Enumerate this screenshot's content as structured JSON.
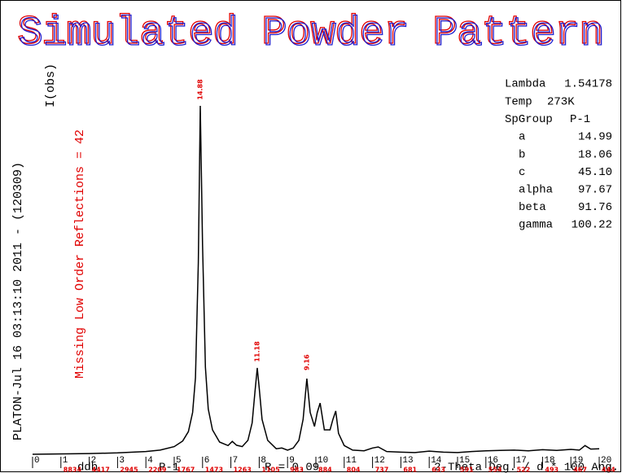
{
  "chart_data": {
    "type": "line",
    "title": "Simulated Powder Pattern",
    "title_colors": [
      "#e00000",
      "#2020d0"
    ],
    "program_line": "PLATON-Jul 16 03:13:10 2011 - (120309)",
    "ylabel": "I(obs)",
    "missing_note": "Missing Low Order Reflections = 42",
    "info": [
      {
        "label": "Lambda",
        "value": "1.54178"
      },
      {
        "label": "Temp",
        "value": "273K"
      },
      {
        "label": "SpGroup",
        "value": "P-1"
      }
    ],
    "cell": [
      {
        "label": "a",
        "value": "14.99"
      },
      {
        "label": "b",
        "value": "18.06"
      },
      {
        "label": "c",
        "value": "45.10"
      },
      {
        "label": "alpha",
        "value": "97.67"
      },
      {
        "label": "beta",
        "value": "91.76"
      },
      {
        "label": "gamma",
        "value": "100.22"
      }
    ],
    "footer": {
      "left": "ddb",
      "group": "P-1",
      "r_factor": "R = 0.09",
      "xlabel": "2-Theta Deg. / d * 100 Ang."
    },
    "xlim": [
      0,
      20
    ],
    "ylim": [
      0,
      100
    ],
    "xticks": [
      0,
      1,
      2,
      3,
      4,
      5,
      6,
      7,
      8,
      9,
      10,
      11,
      12,
      13,
      14,
      15,
      16,
      17,
      18,
      19,
      20
    ],
    "d_labels": [
      null,
      "8834",
      "4417",
      "2945",
      "2209",
      "1767",
      "1473",
      "1263",
      "1105",
      "983",
      "884",
      "804",
      "737",
      "681",
      "633",
      "591",
      "554",
      "522",
      "493",
      "467",
      "444"
    ],
    "d_label_color": "#e00000",
    "peak_labels": [
      {
        "x": 5.92,
        "label": "14.88"
      },
      {
        "x": 7.93,
        "label": "11.18"
      },
      {
        "x": 9.68,
        "label": "9.16"
      }
    ],
    "color": "#000000",
    "x": [
      0,
      2,
      3,
      4,
      4.5,
      5,
      5.3,
      5.5,
      5.65,
      5.75,
      5.85,
      5.92,
      6.0,
      6.1,
      6.2,
      6.35,
      6.6,
      6.9,
      7.05,
      7.2,
      7.4,
      7.6,
      7.75,
      7.85,
      7.93,
      8.0,
      8.1,
      8.3,
      8.6,
      8.8,
      9.0,
      9.2,
      9.4,
      9.55,
      9.68,
      9.8,
      9.95,
      10.05,
      10.15,
      10.3,
      10.5,
      10.6,
      10.7,
      10.8,
      11.0,
      11.3,
      11.7,
      12.0,
      12.2,
      12.5,
      13,
      13.5,
      14,
      14.5,
      15,
      15.5,
      16,
      16.5,
      17,
      17.5,
      18,
      18.5,
      19,
      19.3,
      19.5,
      19.7,
      20
    ],
    "values": [
      0,
      0.2,
      0.4,
      0.8,
      1.2,
      2.2,
      3.8,
      6.5,
      12,
      22,
      55,
      100,
      60,
      25,
      13,
      7,
      3.5,
      2.5,
      3.7,
      2.6,
      2.2,
      4,
      9,
      18,
      24.8,
      19,
      10,
      4,
      1.6,
      1.8,
      1.2,
      1.8,
      4,
      10,
      21.7,
      12,
      8,
      12,
      14.7,
      7,
      7,
      10,
      12.4,
      6,
      2.5,
      1.2,
      1,
      1.8,
      2.1,
      0.8,
      0.6,
      0.5,
      0.9,
      0.6,
      0.5,
      0.8,
      1,
      1.1,
      1.2,
      1.0,
      1.3,
      1.1,
      1.4,
      1.2,
      2.5,
      1.5,
      1.6
    ]
  }
}
